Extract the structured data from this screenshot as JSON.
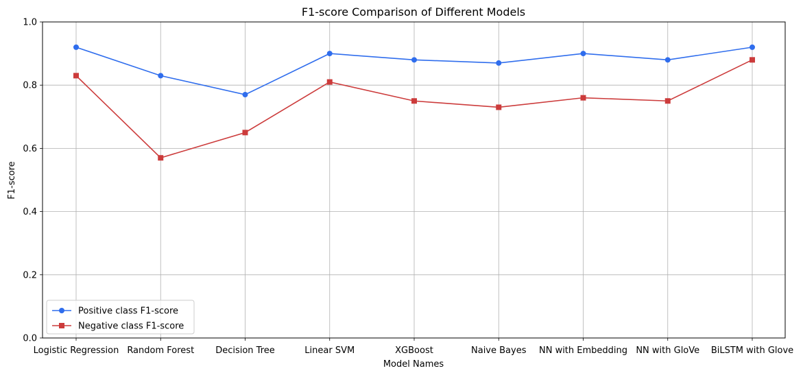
{
  "chart_data": {
    "type": "line",
    "title": "F1-score Comparison of Different Models",
    "xlabel": "Model Names",
    "ylabel": "F1-score",
    "categories": [
      "Logistic Regression",
      "Random Forest",
      "Decision Tree",
      "Linear SVM",
      "XGBoost",
      "Naive Bayes",
      "NN with Embedding",
      "NN with GloVe",
      "BiLSTM with Glove"
    ],
    "ylim": [
      0,
      1.0
    ],
    "yticks": [
      "0.0",
      "0.2",
      "0.4",
      "0.6",
      "0.8",
      "1.0"
    ],
    "grid": true,
    "legend_position": "lower-left",
    "series": [
      {
        "name": "Positive class F1-score",
        "color": "#2f6ded",
        "marker": "circle",
        "values": [
          0.92,
          0.83,
          0.77,
          0.9,
          0.88,
          0.87,
          0.9,
          0.88,
          0.92
        ]
      },
      {
        "name": "Negative class F1-score",
        "color": "#cc3b3b",
        "marker": "square",
        "values": [
          0.83,
          0.57,
          0.65,
          0.81,
          0.75,
          0.73,
          0.76,
          0.75,
          0.88
        ]
      }
    ]
  }
}
